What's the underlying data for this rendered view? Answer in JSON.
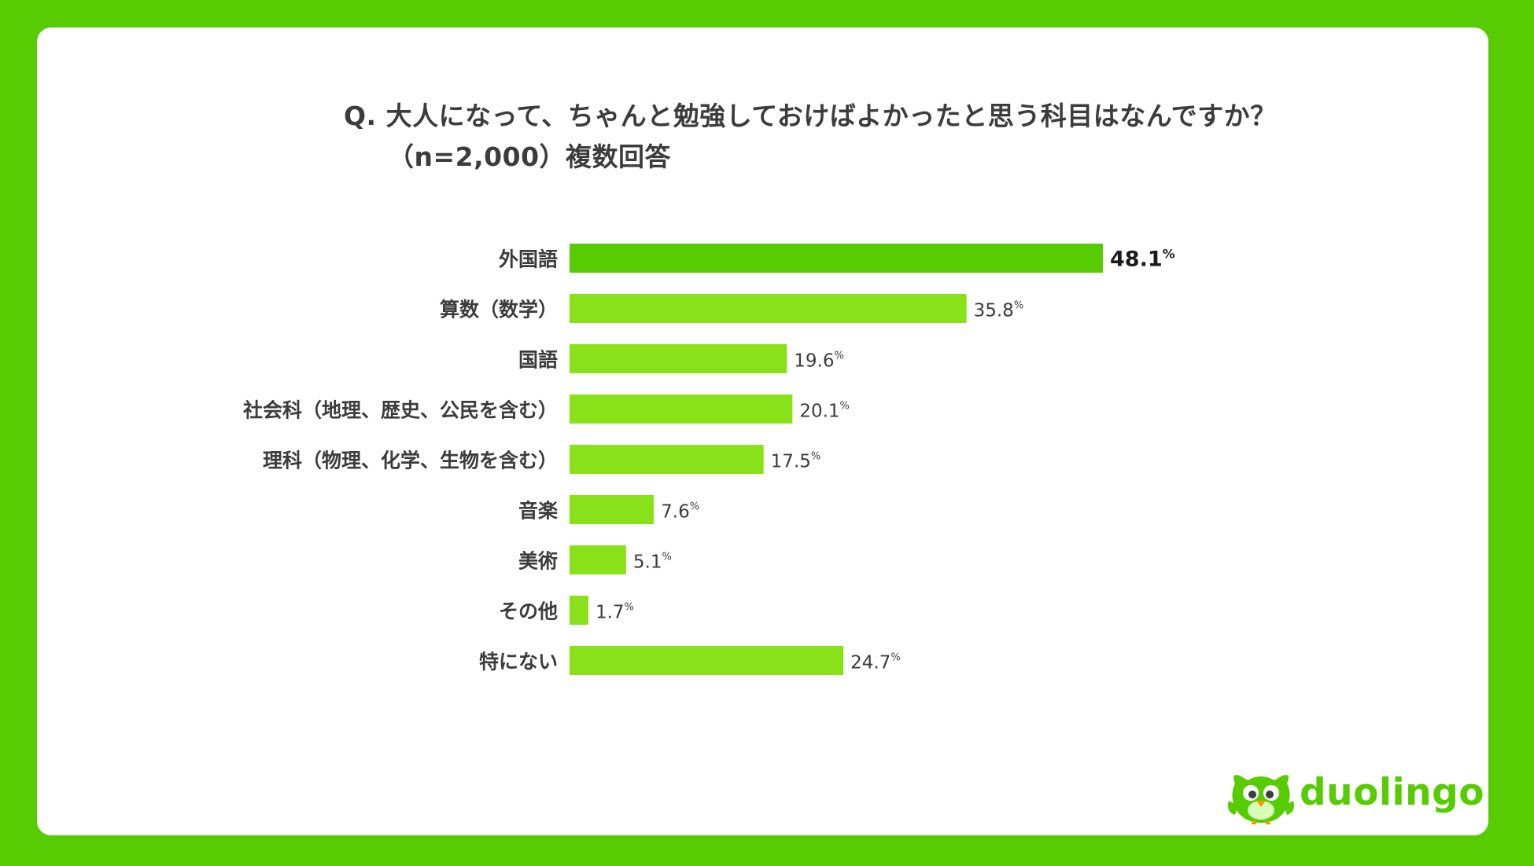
{
  "title": {
    "line1": "Q. 大人になって、ちゃんと勉強しておけばよかったと思う科目はなんですか？",
    "line2": "（n=2,000）複数回答"
  },
  "chart_data": {
    "type": "bar",
    "orientation": "horizontal",
    "categories": [
      "外国語",
      "算数（数学）",
      "国語",
      "社会科（地理、歴史、公民を含む）",
      "理科（物理、化学、生物を含む）",
      "音楽",
      "美術",
      "その他",
      "特にない"
    ],
    "values": [
      48.1,
      35.8,
      19.6,
      20.1,
      17.5,
      7.6,
      5.1,
      1.7,
      24.7
    ],
    "labels": [
      "48.1",
      "35.8",
      "19.6",
      "20.1",
      "17.5",
      "7.6",
      "5.1",
      "1.7",
      "24.7"
    ],
    "unit": "%",
    "highlight_index": 0,
    "xlim": [
      0,
      48.1
    ],
    "grid": false,
    "legend": "none"
  },
  "colors": {
    "background": "#58cc02",
    "highlight_bar": "#58cc02",
    "bar": "#89e219",
    "text": "#3c3c3c",
    "highlight_text": "#1a1a1a"
  },
  "logo": {
    "text": "duolingo",
    "icon": "duo-owl-icon"
  }
}
